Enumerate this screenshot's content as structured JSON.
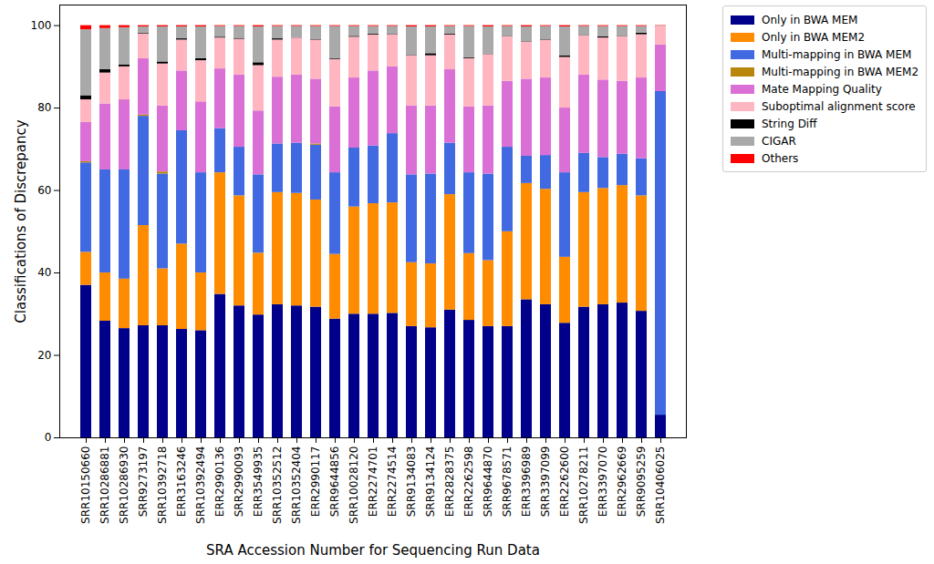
{
  "chart_data": {
    "type": "bar",
    "stacked": true,
    "legend": "right",
    "grid": false,
    "x_label": "SRA Accession Number for Sequencing Run Data",
    "y_label": "Classifications of Discrepancy",
    "ylim": [
      0,
      105
    ],
    "yticks": [
      0,
      20,
      40,
      60,
      80,
      100
    ],
    "categories": [
      "SRR10150660",
      "SRR10286881",
      "SRR10286930",
      "SRR9273197",
      "SRR10392718",
      "ERR3163246",
      "SRR10392494",
      "ERR2990136",
      "SRR2990093",
      "ERR3549935",
      "SRR10352512",
      "SRR10352404",
      "ERR2990117",
      "SRR9644856",
      "SRR10028120",
      "ERR2274701",
      "ERR2274514",
      "SRR9134083",
      "SRR9134124",
      "ERR2828375",
      "ERR2262598",
      "SRR9644870",
      "SRR9678571",
      "ERR3396989",
      "SRR3397099",
      "ERR2262600",
      "SRR10278211",
      "ERR3397070",
      "ERR2962669",
      "SRR9095259",
      "SRR10406025"
    ],
    "series": [
      {
        "name": "Only in BWA MEM",
        "color": "#00008b",
        "values": [
          37,
          28.3,
          26.5,
          27.2,
          27.2,
          26.3,
          26,
          34.8,
          32,
          29.8,
          32.3,
          32,
          31.7,
          28.8,
          30,
          30,
          30.2,
          27,
          26.7,
          31,
          28.5,
          27,
          27,
          33.5,
          32.3,
          27.8,
          31.7,
          32.3,
          32.7,
          30.7,
          5.5
        ]
      },
      {
        "name": "Only in BWA MEM2",
        "color": "#ff8c00",
        "values": [
          8,
          11.7,
          12,
          24.3,
          13.8,
          20.7,
          14,
          29.5,
          26.7,
          15,
          27.2,
          27.3,
          26,
          15.7,
          26,
          26.8,
          26.8,
          15.5,
          15.5,
          28,
          16.2,
          16,
          23,
          28.2,
          28,
          16,
          27.8,
          28.2,
          28.5,
          28,
          0
        ]
      },
      {
        "name": "Multi-mapping in BWA MEM",
        "color": "#4169e1",
        "values": [
          21.7,
          25,
          26.5,
          26.5,
          23,
          27.5,
          24.3,
          10.7,
          11.8,
          19,
          11.8,
          12.2,
          13.3,
          19.8,
          14.3,
          14,
          16.8,
          21.3,
          21.8,
          12.5,
          19.6,
          21,
          20.5,
          6.6,
          8.2,
          20.5,
          9.5,
          7.5,
          7.6,
          9,
          78.5
        ]
      },
      {
        "name": "Multi-mapping in BWA MEM2",
        "color": "#b8860b",
        "values": [
          0.3,
          0,
          0,
          0.3,
          0.5,
          0,
          0,
          0,
          0,
          0,
          0,
          0,
          0.3,
          0,
          0,
          0,
          0,
          0,
          0,
          0,
          0,
          0,
          0,
          0,
          0,
          0,
          0,
          0,
          0,
          0,
          0
        ]
      },
      {
        "name": "Mate Mapping Quality",
        "color": "#da70d6",
        "values": [
          9.5,
          16,
          17,
          13.7,
          16,
          14.5,
          17.2,
          14.5,
          17.5,
          15.5,
          16.2,
          16.5,
          15.7,
          16,
          17,
          18.2,
          16.2,
          16.7,
          16.5,
          17.8,
          16,
          16.5,
          16,
          18.7,
          18.8,
          15.7,
          19,
          18.8,
          17.7,
          19.6,
          11.3
        ]
      },
      {
        "name": "Suboptimal alignment score",
        "color": "#ffb6c1",
        "values": [
          5.5,
          7.5,
          8,
          6,
          10.2,
          7.5,
          10,
          7.5,
          8.7,
          11,
          9,
          9,
          9.5,
          11.5,
          9.9,
          8.7,
          7.8,
          12.2,
          12.2,
          8.4,
          11.7,
          12.5,
          10.8,
          9,
          9.2,
          12.3,
          9.5,
          10.2,
          10.8,
          10.5,
          4.5
        ]
      },
      {
        "name": "String Diff",
        "color": "#000000",
        "values": [
          1,
          0.8,
          0.5,
          0.2,
          0.5,
          0.3,
          0.5,
          0.2,
          0.2,
          0.7,
          0.3,
          0.1,
          0.1,
          0.2,
          0.2,
          0.2,
          0.1,
          0.1,
          0.5,
          0.2,
          0.2,
          0.1,
          0.1,
          0.1,
          0.1,
          0.4,
          0.1,
          0.3,
          0.1,
          0.4,
          0
        ]
      },
      {
        "name": "CIGAR",
        "color": "#a9a9a9",
        "values": [
          16,
          10,
          9,
          1.5,
          8.5,
          2.9,
          7.7,
          2.6,
          2.9,
          8.7,
          3,
          2.7,
          3.2,
          7.8,
          2.4,
          1.9,
          1.9,
          6.9,
          6.5,
          1.9,
          7.6,
          6.6,
          2.4,
          3.6,
          3.2,
          7,
          2.2,
          2.5,
          2.4,
          1.6,
          0.1
        ]
      },
      {
        "name": "Others",
        "color": "#ff0000",
        "values": [
          1,
          0.7,
          0.5,
          0.3,
          0.3,
          0.3,
          0.3,
          0.2,
          0.2,
          0.3,
          0.2,
          0.2,
          0.2,
          0.2,
          0.2,
          0.2,
          0.2,
          0.3,
          0.3,
          0.2,
          0.2,
          0.3,
          0.2,
          0.3,
          0.2,
          0.3,
          0.2,
          0.2,
          0.2,
          0.2,
          0.1
        ]
      }
    ]
  }
}
